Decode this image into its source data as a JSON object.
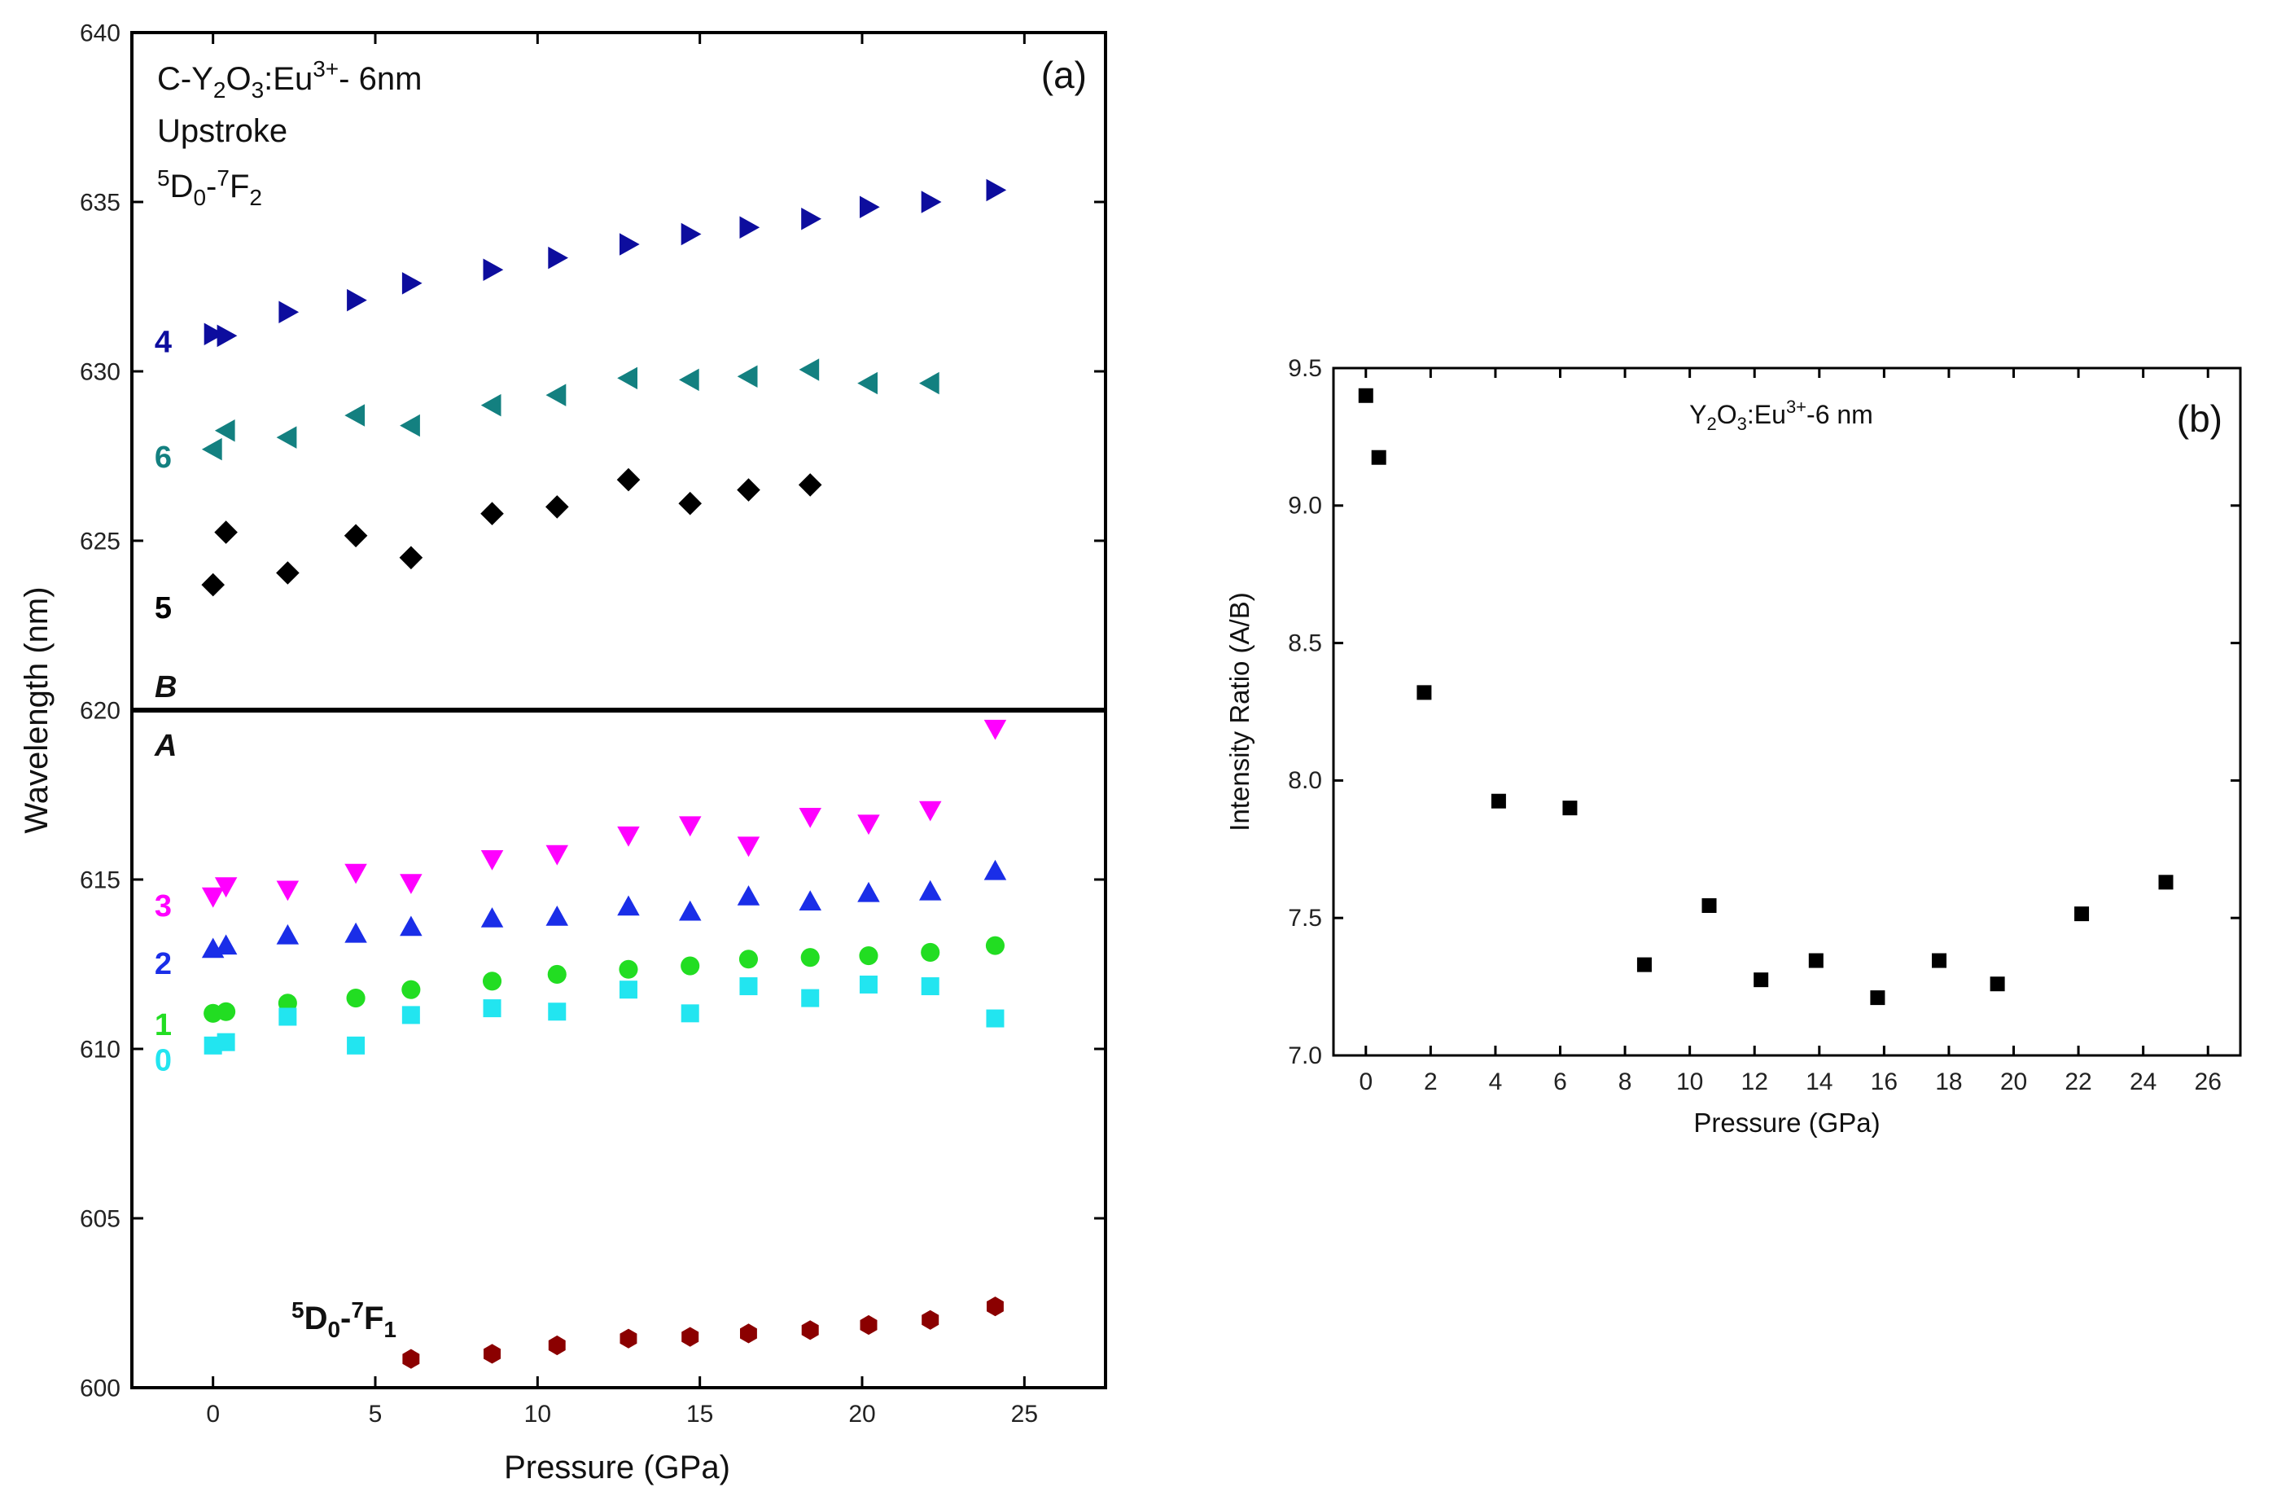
{
  "chart_data": [
    {
      "panel": "(a)",
      "type": "scatter",
      "xlabel": "Pressure (GPa)",
      "ylabel": "Wavelength (nm)",
      "xlim": [
        -2.5,
        27.5
      ],
      "ylim": [
        600,
        640
      ],
      "xticks": [
        0,
        5,
        10,
        15,
        20,
        25
      ],
      "yticks": [
        600,
        605,
        610,
        615,
        620,
        625,
        630,
        635,
        640
      ],
      "divider_y": 620,
      "annotations": {
        "title_main": "C-Y",
        "title_sub1": "2",
        "title_mid": "O",
        "title_sub2": "3",
        "title_tail": ":Eu",
        "title_sup": "3+",
        "title_end": "- 6nm",
        "condition": "Upstroke",
        "transition_top_a": "5",
        "transition_top_b": "D",
        "transition_top_c": "0",
        "transition_top_d": "-",
        "transition_top_e": "7",
        "transition_top_f": "F",
        "transition_top_g": "2",
        "transition_bot_a": "5",
        "transition_bot_b": "D",
        "transition_bot_c": "0",
        "transition_bot_d": "-",
        "transition_bot_e": "7",
        "transition_bot_f": "F",
        "transition_bot_g": "1",
        "band_B": "B",
        "band_A": "A",
        "panel_tag": "(a)"
      },
      "series": [
        {
          "name": "4",
          "marker": "tri-right",
          "color": "#0d0d9e",
          "x": [
            0,
            0.4,
            2.3,
            4.4,
            6.1,
            8.6,
            10.6,
            12.8,
            14.7,
            16.5,
            18.4,
            20.2,
            22.1,
            24.1
          ],
          "y": [
            631.1,
            631.05,
            631.75,
            632.1,
            632.6,
            633.0,
            633.35,
            633.75,
            634.05,
            634.25,
            634.5,
            634.85,
            635.0,
            635.35
          ]
        },
        {
          "name": "6",
          "marker": "tri-left",
          "color": "#138080",
          "x": [
            0,
            0.4,
            2.3,
            4.4,
            6.1,
            8.6,
            10.6,
            12.8,
            14.7,
            16.5,
            18.4,
            20.2,
            22.1
          ],
          "y": [
            627.7,
            628.25,
            628.05,
            628.7,
            628.4,
            629.0,
            629.3,
            629.8,
            629.75,
            629.85,
            630.05,
            629.65,
            629.65
          ]
        },
        {
          "name": "5",
          "marker": "diamond",
          "color": "#000000",
          "x": [
            0,
            0.4,
            2.3,
            4.4,
            6.1,
            8.6,
            10.6,
            12.8,
            14.7,
            16.5,
            18.4
          ],
          "y": [
            623.7,
            625.25,
            624.05,
            625.15,
            624.5,
            625.8,
            626.0,
            626.8,
            626.1,
            626.5,
            626.65
          ]
        },
        {
          "name": "3",
          "marker": "tri-down",
          "color": "#ff00ff",
          "x": [
            0,
            0.4,
            2.3,
            4.4,
            6.1,
            8.6,
            10.6,
            12.8,
            14.7,
            16.5,
            18.4,
            20.2,
            22.1,
            24.1
          ],
          "y": [
            614.5,
            614.8,
            614.7,
            615.2,
            614.9,
            615.6,
            615.75,
            616.3,
            616.6,
            616.0,
            616.85,
            616.65,
            617.05,
            619.45
          ]
        },
        {
          "name": "2",
          "marker": "tri-up",
          "color": "#1a2ee8",
          "x": [
            0,
            0.4,
            2.3,
            4.4,
            6.1,
            8.6,
            10.6,
            12.8,
            14.7,
            16.5,
            18.4,
            20.2,
            22.1,
            24.1
          ],
          "y": [
            612.95,
            613.05,
            613.35,
            613.4,
            613.6,
            613.85,
            613.9,
            614.2,
            614.05,
            614.5,
            614.35,
            614.6,
            614.65,
            615.25
          ]
        },
        {
          "name": "1",
          "marker": "circle",
          "color": "#22dd22",
          "x": [
            0,
            0.4,
            2.3,
            4.4,
            6.1,
            8.6,
            10.6,
            12.8,
            14.7,
            16.5,
            18.4,
            20.2,
            22.1,
            24.1
          ],
          "y": [
            611.05,
            611.1,
            611.35,
            611.5,
            611.75,
            612.0,
            612.2,
            612.35,
            612.45,
            612.65,
            612.7,
            612.75,
            612.85,
            613.05
          ]
        },
        {
          "name": "0",
          "marker": "square",
          "color": "#22e5f0",
          "x": [
            0,
            0.4,
            2.3,
            4.4,
            6.1,
            8.6,
            10.6,
            12.8,
            14.7,
            16.5,
            18.4,
            20.2,
            22.1,
            24.1
          ],
          "y": [
            610.1,
            610.2,
            610.95,
            610.1,
            611.0,
            611.2,
            611.1,
            611.75,
            611.05,
            611.85,
            611.5,
            611.9,
            611.85,
            610.9
          ]
        },
        {
          "name": "5D0-7F1",
          "marker": "hexagon",
          "color": "#8b0000",
          "x": [
            6.1,
            8.6,
            10.6,
            12.8,
            14.7,
            16.5,
            18.4,
            20.2,
            22.1,
            24.1
          ],
          "y": [
            600.85,
            601.0,
            601.25,
            601.45,
            601.5,
            601.6,
            601.7,
            601.85,
            602.0,
            602.4
          ]
        }
      ],
      "series_labels": [
        {
          "text": "4",
          "color": "#0d0d9e",
          "x": -1.8,
          "y": 630.9
        },
        {
          "text": "6",
          "color": "#138080",
          "x": -1.8,
          "y": 627.5
        },
        {
          "text": "5",
          "color": "#000000",
          "x": -1.8,
          "y": 623.05
        },
        {
          "text": "3",
          "color": "#ff00ff",
          "x": -1.8,
          "y": 614.25
        },
        {
          "text": "2",
          "color": "#1a2ee8",
          "x": -1.8,
          "y": 612.55
        },
        {
          "text": "1",
          "color": "#22dd22",
          "x": -1.8,
          "y": 610.75
        },
        {
          "text": "0",
          "color": "#22e5f0",
          "x": -1.8,
          "y": 609.7
        }
      ]
    },
    {
      "panel": "(b)",
      "type": "scatter",
      "xlabel": "Pressure (GPa)",
      "ylabel": "Intensity Ratio (A/B)",
      "xlim": [
        -1,
        27
      ],
      "ylim": [
        7.0,
        9.5
      ],
      "xticks": [
        0,
        2,
        4,
        6,
        8,
        10,
        12,
        14,
        16,
        18,
        20,
        22,
        24,
        26
      ],
      "yticks": [
        7.0,
        7.5,
        8.0,
        8.5,
        9.0,
        9.5
      ],
      "annotations": {
        "title_a": "Y",
        "title_sub1": "2",
        "title_b": "O",
        "title_sub2": "3",
        "title_c": ":Eu",
        "title_sup": "3+",
        "title_d": "-6 nm",
        "panel_tag": "(b)"
      },
      "series": [
        {
          "name": "A/B",
          "marker": "square",
          "color": "#000000",
          "x": [
            0,
            0.4,
            1.8,
            4.1,
            6.3,
            8.6,
            10.6,
            12.2,
            13.9,
            15.8,
            17.7,
            19.5,
            22.1,
            24.7
          ],
          "y": [
            9.4,
            9.175,
            8.32,
            7.925,
            7.9,
            7.33,
            7.545,
            7.275,
            7.345,
            7.21,
            7.345,
            7.26,
            7.515,
            7.63
          ]
        }
      ]
    }
  ]
}
